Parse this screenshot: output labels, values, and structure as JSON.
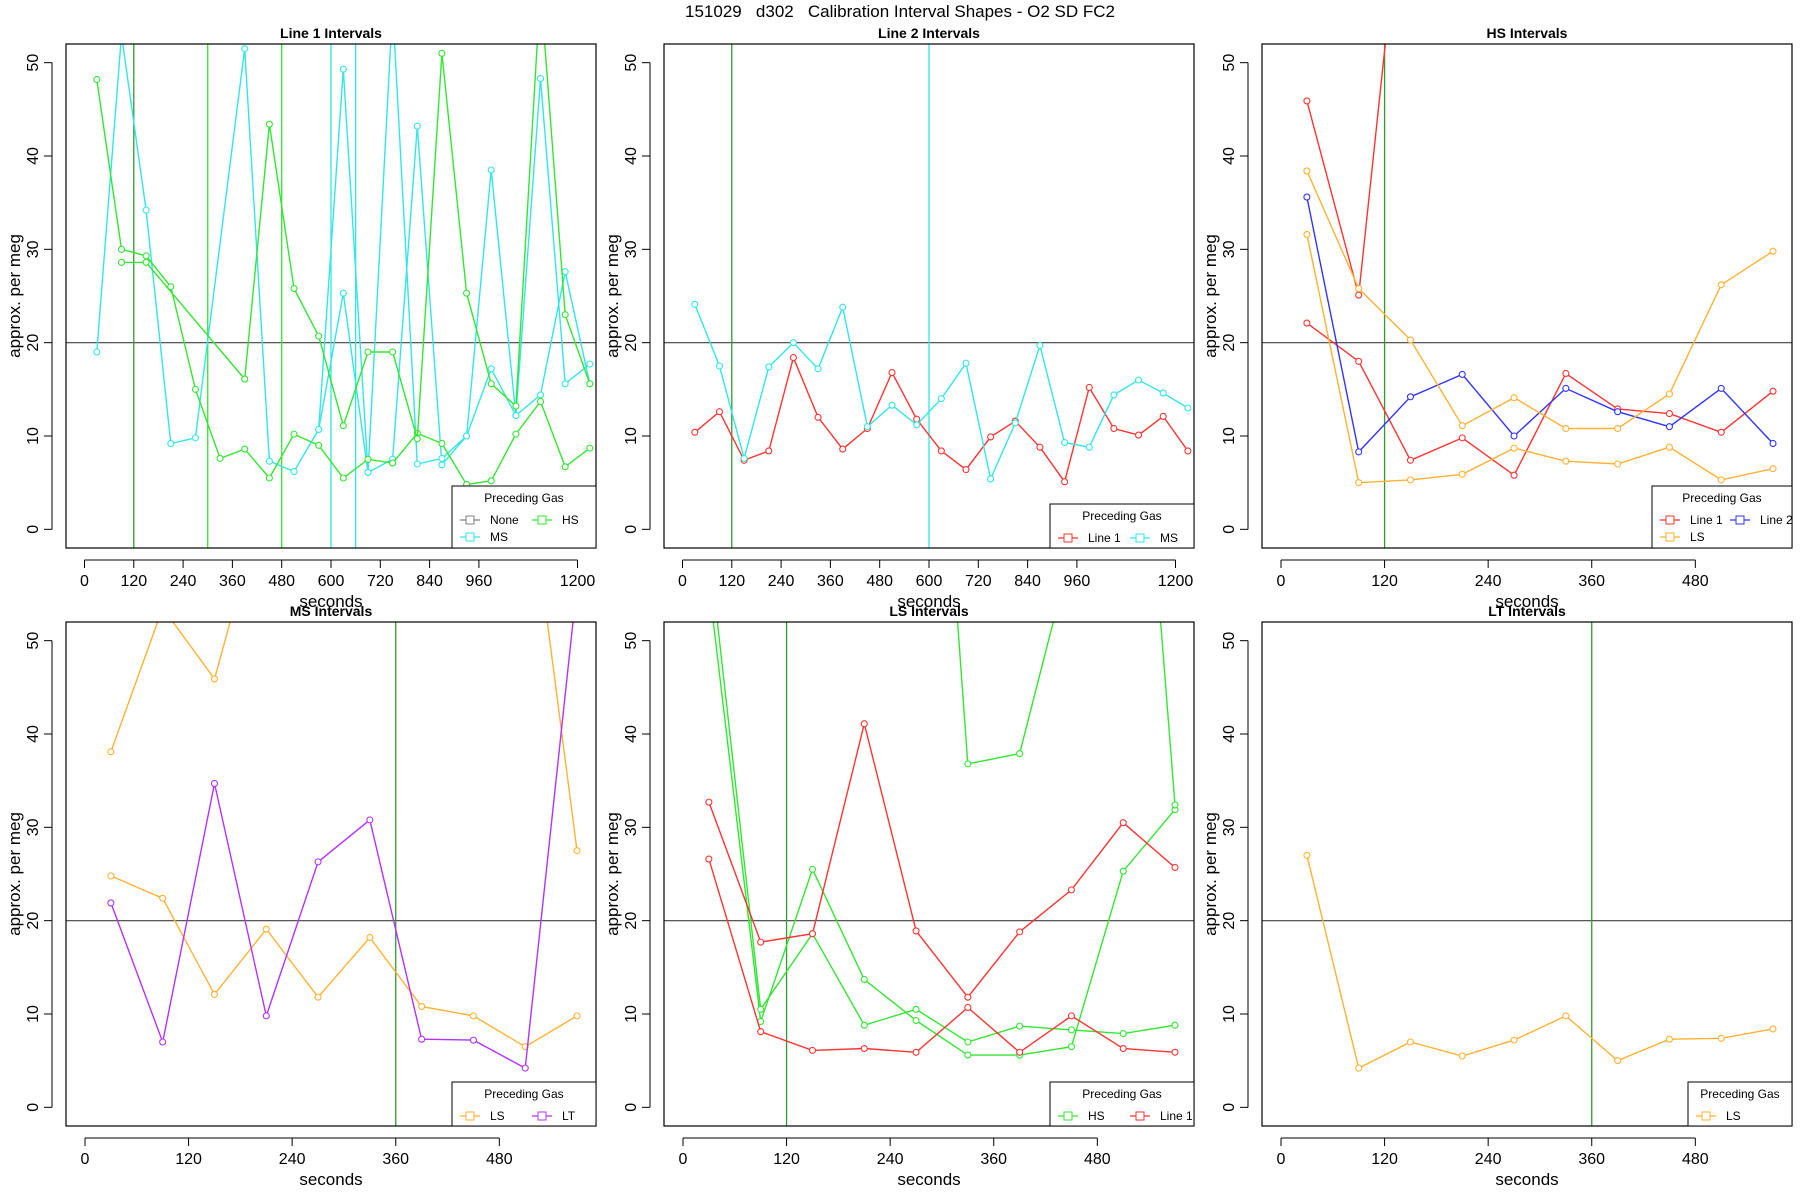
{
  "title": "151029   d302   Calibration Interval Shapes - O2 SD FC2",
  "colors": {
    "None": "#808080",
    "HS": "#33e633",
    "MS": "#33e6e6",
    "Line 1": "#ff3333",
    "Line 2": "#3333ff",
    "LS": "#ffb233",
    "LT": "#b233ff",
    "marker": "#339933",
    "hline": "#404040"
  },
  "chart_data": [
    {
      "type": "line",
      "title": "Line 1 Intervals",
      "xlabel": "seconds",
      "ylabel": "approx. per meg",
      "xlim": [
        -45,
        1245
      ],
      "ylim": [
        -2,
        52
      ],
      "xticks": [
        0,
        120,
        240,
        360,
        480,
        600,
        720,
        840,
        960,
        1200
      ],
      "yticks": [
        0,
        10,
        20,
        30,
        40,
        50
      ],
      "hline": 20,
      "markers": [
        {
          "x": 120,
          "color": "marker"
        },
        {
          "x": 300,
          "color": "HS"
        },
        {
          "x": 480,
          "color": "HS"
        },
        {
          "x": 600,
          "color": "MS"
        },
        {
          "x": 660,
          "color": "MS"
        }
      ],
      "legend": {
        "title": "Preceding Gas",
        "entries": [
          "None",
          "HS",
          "MS"
        ],
        "columns": 2
      },
      "series": [
        {
          "name": "MS",
          "x": [
            30,
            90,
            150,
            210,
            270,
            390,
            450,
            510,
            570,
            630,
            690,
            750,
            810,
            870,
            930,
            990,
            1050,
            1110,
            1170,
            1230
          ],
          "y": [
            19,
            53,
            34.2,
            9.2,
            9.8,
            51.5,
            7.3,
            6.2,
            10.7,
            49.3,
            6.1,
            7.5,
            43.2,
            6.9,
            10,
            38.5,
            12.2,
            48.3,
            15.6,
            17.7
          ]
        },
        {
          "name": "MS",
          "x": [
            570,
            630,
            690,
            750,
            810,
            870,
            930,
            990,
            1050,
            1110,
            1170,
            1230
          ],
          "y": [
            10.7,
            25.3,
            6.1,
            56,
            7,
            7.6,
            10,
            17.2,
            12.2,
            14.4,
            27.6,
            15.6
          ]
        },
        {
          "name": "HS",
          "x": [
            30,
            90,
            150,
            210,
            270,
            330,
            390,
            450,
            510,
            570,
            630,
            690,
            750,
            810,
            870,
            930,
            990,
            1050,
            1110,
            1170,
            1230
          ],
          "y": [
            48.2,
            30,
            29.3,
            26,
            15,
            7.6,
            8.6,
            5.5,
            10.2,
            9,
            5.5,
            7.5,
            7.1,
            10.3,
            9.2,
            4.8,
            5.2,
            10.2,
            13.7,
            6.7,
            8.7
          ]
        },
        {
          "name": "HS",
          "x": [
            90,
            150,
            390,
            450,
            510,
            570,
            630,
            690,
            750,
            810,
            870,
            930,
            990,
            1050,
            1110,
            1170,
            1230
          ],
          "y": [
            28.6,
            28.6,
            16.1,
            43.4,
            25.8,
            20.7,
            11.1,
            19,
            19,
            9.7,
            51,
            25.3,
            15.6,
            13.2,
            58,
            23,
            15.6
          ]
        }
      ]
    },
    {
      "type": "line",
      "title": "Line 2 Intervals",
      "xlabel": "seconds",
      "ylabel": "approx. per meg",
      "xlim": [
        -45,
        1245
      ],
      "ylim": [
        -2,
        52
      ],
      "xticks": [
        0,
        120,
        240,
        360,
        480,
        600,
        720,
        840,
        960,
        1200
      ],
      "yticks": [
        0,
        10,
        20,
        30,
        40,
        50
      ],
      "hline": 20,
      "markers": [
        {
          "x": 120,
          "color": "marker"
        },
        {
          "x": 600,
          "color": "MS"
        }
      ],
      "legend": {
        "title": "Preceding Gas",
        "entries": [
          "Line 1",
          "MS"
        ],
        "columns": 2
      },
      "series": [
        {
          "name": "Line 1",
          "x": [
            30,
            90,
            150,
            210,
            270,
            330,
            390,
            450,
            510,
            570,
            630,
            690,
            750,
            810,
            870,
            930,
            990,
            1050,
            1110,
            1170,
            1230
          ],
          "y": [
            10.4,
            12.6,
            7.4,
            8.4,
            18.4,
            12,
            8.6,
            10.8,
            16.8,
            11.8,
            8.4,
            6.4,
            9.9,
            11.6,
            8.8,
            5.1,
            15.2,
            10.8,
            10.1,
            12.1,
            8.4
          ]
        },
        {
          "name": "MS",
          "x": [
            30,
            90,
            150,
            210,
            270,
            330,
            390,
            450,
            510,
            570,
            630,
            690,
            750,
            810,
            870,
            930,
            990,
            1050,
            1110,
            1170,
            1230
          ],
          "y": [
            24.1,
            17.5,
            7.6,
            17.4,
            20,
            17.2,
            23.8,
            11,
            13.3,
            11.2,
            14,
            17.8,
            5.4,
            11.4,
            19.7,
            9.3,
            8.8,
            14.4,
            16,
            14.6,
            13
          ]
        }
      ]
    },
    {
      "type": "line",
      "title": "HS Intervals",
      "xlabel": "seconds",
      "ylabel": "approx. per meg",
      "xlim": [
        -22,
        592
      ],
      "ylim": [
        -2,
        52
      ],
      "xticks": [
        0,
        120,
        240,
        360,
        480
      ],
      "yticks": [
        0,
        10,
        20,
        30,
        40,
        50
      ],
      "hline": 20,
      "markers": [
        {
          "x": 120,
          "color": "marker"
        }
      ],
      "legend": {
        "title": "Preceding Gas",
        "entries": [
          "Line 1",
          "Line 2",
          "LS"
        ],
        "columns": 2
      },
      "series": [
        {
          "name": "Line 1",
          "x": [
            30,
            90,
            150,
            210,
            270,
            330,
            390,
            450,
            510,
            570
          ],
          "y": [
            22.1,
            18,
            7.4,
            9.8,
            5.8,
            16.7,
            12.9,
            12.4,
            10.4,
            14.8
          ]
        },
        {
          "name": "Line 1",
          "x": [
            30,
            90,
            130
          ],
          "y": [
            45.9,
            25.1,
            60
          ]
        },
        {
          "name": "Line 2",
          "x": [
            30,
            90,
            150,
            210,
            270,
            330,
            390,
            450,
            510,
            570
          ],
          "y": [
            35.6,
            8.3,
            14.2,
            16.6,
            10,
            15.1,
            12.6,
            11,
            15.1,
            9.2
          ]
        },
        {
          "name": "LS",
          "x": [
            30,
            90,
            150,
            210,
            270,
            330,
            390,
            450,
            510,
            570
          ],
          "y": [
            31.6,
            5,
            5.3,
            5.9,
            8.7,
            7.3,
            7,
            8.8,
            5.3,
            6.5
          ]
        },
        {
          "name": "LS",
          "x": [
            30,
            90,
            150,
            210,
            270,
            330,
            390,
            450,
            510,
            570
          ],
          "y": [
            38.4,
            25.8,
            20.3,
            11.1,
            14.1,
            10.8,
            10.8,
            14.5,
            26.2,
            29.8
          ]
        }
      ]
    },
    {
      "type": "line",
      "title": "MS Intervals",
      "xlabel": "seconds",
      "ylabel": "approx. per meg",
      "xlim": [
        -22,
        592
      ],
      "ylim": [
        -2,
        52
      ],
      "xticks": [
        0,
        120,
        240,
        360,
        480
      ],
      "yticks": [
        0,
        10,
        20,
        30,
        40,
        50
      ],
      "hline": 20,
      "markers": [
        {
          "x": 360,
          "color": "marker"
        }
      ],
      "legend": {
        "title": "Preceding Gas",
        "entries": [
          "LS",
          "LT"
        ],
        "columns": 2
      },
      "series": [
        {
          "name": "LS",
          "x": [
            30,
            90,
            150,
            210,
            270,
            330,
            390,
            450,
            510,
            570
          ],
          "y": [
            24.8,
            22.4,
            12.1,
            19.1,
            11.8,
            18.2,
            10.8,
            9.8,
            6.5,
            9.8
          ]
        },
        {
          "name": "LS",
          "x": [
            30,
            90,
            150,
            180
          ],
          "y": [
            38.1,
            53.5,
            45.9,
            56
          ]
        },
        {
          "name": "LS",
          "x": [
            530,
            570
          ],
          "y": [
            56,
            27.5
          ]
        },
        {
          "name": "LT",
          "x": [
            30,
            90,
            150,
            210,
            270,
            330,
            390,
            450,
            510,
            570
          ],
          "y": [
            21.9,
            7,
            34.7,
            9.8,
            26.3,
            30.8,
            7.3,
            7.2,
            4.2,
            56
          ]
        }
      ]
    },
    {
      "type": "line",
      "title": "LS Intervals",
      "xlabel": "seconds",
      "ylabel": "approx. per meg",
      "xlim": [
        -22,
        592
      ],
      "ylim": [
        -2,
        52
      ],
      "xticks": [
        0,
        120,
        240,
        360,
        480
      ],
      "yticks": [
        0,
        10,
        20,
        30,
        40,
        50
      ],
      "hline": 20,
      "markers": [
        {
          "x": 120,
          "color": "marker"
        }
      ],
      "legend": {
        "title": "Preceding Gas",
        "entries": [
          "HS",
          "Line 1"
        ],
        "columns": 2
      },
      "series": [
        {
          "name": "HS",
          "x": [
            30,
            90,
            150,
            210,
            270,
            330,
            390,
            450,
            510,
            570
          ],
          "y": [
            56,
            9.2,
            25.5,
            13.7,
            9.3,
            5.6,
            5.6,
            6.5,
            25.3,
            31.9
          ]
        },
        {
          "name": "HS",
          "x": [
            35,
            90,
            150,
            210,
            270,
            330,
            390,
            450,
            510,
            570
          ],
          "y": [
            56,
            10.5,
            18.6,
            8.8,
            10.5,
            7,
            8.7,
            8.3,
            7.9,
            8.8
          ]
        },
        {
          "name": "HS",
          "x": [
            315,
            330,
            390,
            440,
            550,
            570
          ],
          "y": [
            56,
            36.8,
            37.9,
            56,
            56,
            32.4
          ]
        },
        {
          "name": "Line 1",
          "x": [
            30,
            90,
            150,
            210,
            270,
            330,
            390,
            450,
            510,
            570
          ],
          "y": [
            32.7,
            17.7,
            18.6,
            41.1,
            18.9,
            11.8,
            18.8,
            23.3,
            30.5,
            25.7
          ]
        },
        {
          "name": "Line 1",
          "x": [
            30,
            90,
            150,
            210,
            270,
            330,
            390,
            450,
            510,
            570
          ],
          "y": [
            26.6,
            8.1,
            6.1,
            6.3,
            5.9,
            10.7,
            5.9,
            9.8,
            6.3,
            5.9
          ]
        }
      ]
    },
    {
      "type": "line",
      "title": "LT Intervals",
      "xlabel": "seconds",
      "ylabel": "approx. per meg",
      "xlim": [
        -22,
        592
      ],
      "ylim": [
        -2,
        52
      ],
      "xticks": [
        0,
        120,
        240,
        360,
        480
      ],
      "yticks": [
        0,
        10,
        20,
        30,
        40,
        50
      ],
      "hline": 20,
      "markers": [
        {
          "x": 360,
          "color": "marker"
        }
      ],
      "legend": {
        "title": "Preceding Gas",
        "entries": [
          "LS"
        ],
        "columns": 1
      },
      "series": [
        {
          "name": "LS",
          "x": [
            30,
            90,
            150,
            210,
            270,
            330,
            390,
            450,
            510,
            570
          ],
          "y": [
            27,
            4.2,
            7,
            5.5,
            7.2,
            9.8,
            5,
            7.3,
            7.4,
            8.4
          ]
        }
      ]
    }
  ]
}
